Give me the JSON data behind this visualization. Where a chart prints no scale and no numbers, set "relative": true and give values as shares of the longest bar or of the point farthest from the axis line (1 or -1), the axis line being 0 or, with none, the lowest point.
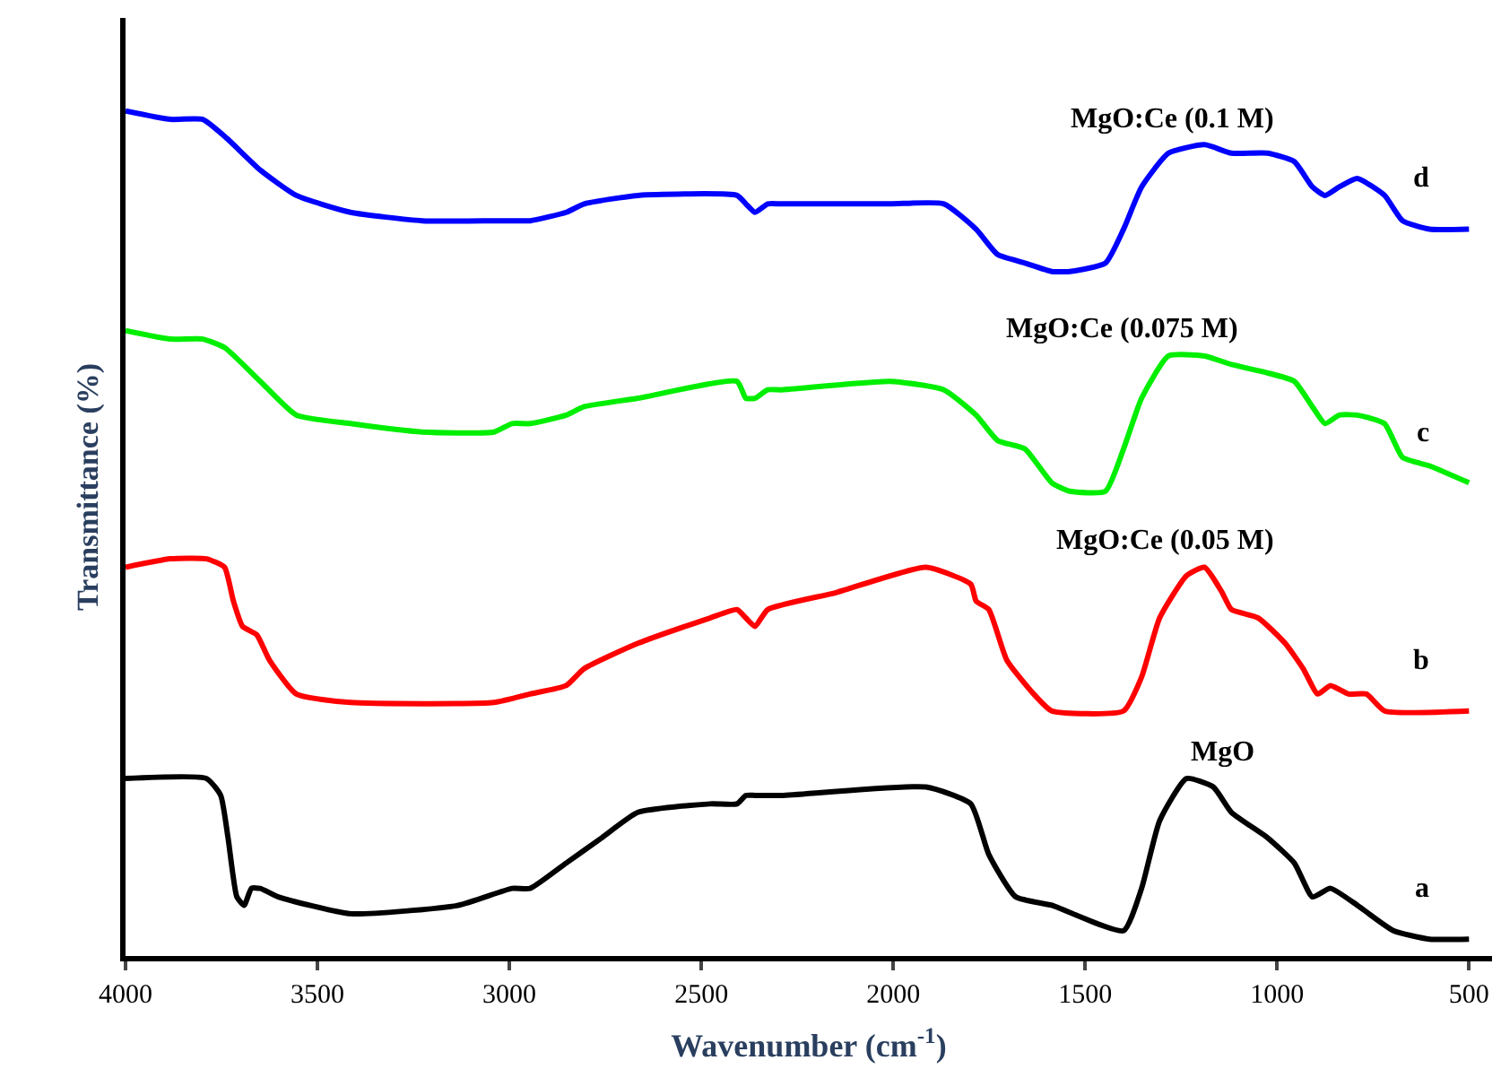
{
  "chart_data": {
    "type": "line",
    "relative": true,
    "xlabel": "Wavenumber (cm$^{-1}$)",
    "ylabel": "Transmittance (%)",
    "xlim": [
      4000,
      440
    ],
    "xticks": [
      4000,
      3500,
      3000,
      2500,
      2000,
      1500,
      1000,
      500
    ],
    "legend": false,
    "tick_labels": "x",
    "series": [
      {
        "name": "MgO",
        "color": "#000000",
        "x": [
          4000,
          3789,
          3752,
          3733,
          3710,
          3691,
          3672,
          3649,
          3602,
          3414,
          3133,
          2993,
          2946,
          2852,
          2759,
          2665,
          2477,
          2407,
          2384,
          2360,
          2290,
          1915,
          1798,
          1751,
          1681,
          1587,
          1400,
          1353,
          1306,
          1236,
          1166,
          1119,
          1025,
          955,
          908,
          861,
          791,
          697,
          603,
          500
        ],
        "values": [
          0.21,
          0.21,
          0.19,
          0.14,
          0.07,
          0.06,
          0.08,
          0.08,
          0.07,
          0.05,
          0.06,
          0.08,
          0.08,
          0.11,
          0.14,
          0.17,
          0.18,
          0.18,
          0.19,
          0.19,
          0.19,
          0.2,
          0.18,
          0.12,
          0.07,
          0.06,
          0.03,
          0.08,
          0.16,
          0.21,
          0.2,
          0.17,
          0.14,
          0.11,
          0.07,
          0.08,
          0.06,
          0.03,
          0.02,
          0.02
        ]
      },
      {
        "name": "MgO:Ce (0.05 M)",
        "color": "#ff0000",
        "x": [
          4000,
          3883,
          3789,
          3742,
          3719,
          3695,
          3658,
          3625,
          3555,
          3414,
          3040,
          2946,
          2852,
          2805,
          2665,
          2477,
          2407,
          2384,
          2360,
          2327,
          2149,
          1915,
          1798,
          1784,
          1751,
          1704,
          1634,
          1587,
          1400,
          1353,
          1306,
          1236,
          1189,
          1143,
          1119,
          1049,
          979,
          932,
          894,
          861,
          814,
          767,
          720,
          500
        ],
        "values": [
          0.46,
          0.47,
          0.47,
          0.46,
          0.42,
          0.39,
          0.38,
          0.35,
          0.31,
          0.3,
          0.3,
          0.31,
          0.32,
          0.34,
          0.37,
          0.4,
          0.41,
          0.4,
          0.39,
          0.41,
          0.43,
          0.46,
          0.44,
          0.42,
          0.41,
          0.35,
          0.31,
          0.29,
          0.29,
          0.33,
          0.4,
          0.45,
          0.46,
          0.43,
          0.41,
          0.4,
          0.37,
          0.34,
          0.31,
          0.32,
          0.31,
          0.31,
          0.29,
          0.29
        ]
      },
      {
        "name": "MgO:Ce (0.075 M)",
        "color": "#00ee00",
        "x": [
          4000,
          3883,
          3799,
          3742,
          3649,
          3555,
          3414,
          3227,
          3040,
          2993,
          2946,
          2852,
          2805,
          2665,
          2407,
          2384,
          2360,
          2327,
          2290,
          2009,
          1868,
          1784,
          1728,
          1657,
          1587,
          1540,
          1447,
          1400,
          1353,
          1283,
          1189,
          1119,
          1025,
          955,
          908,
          875,
          838,
          791,
          720,
          673,
          603,
          500
        ],
        "values": [
          0.74,
          0.73,
          0.73,
          0.72,
          0.68,
          0.64,
          0.63,
          0.62,
          0.62,
          0.63,
          0.63,
          0.64,
          0.65,
          0.66,
          0.68,
          0.66,
          0.66,
          0.67,
          0.67,
          0.68,
          0.67,
          0.64,
          0.61,
          0.6,
          0.56,
          0.55,
          0.55,
          0.6,
          0.66,
          0.71,
          0.71,
          0.7,
          0.69,
          0.68,
          0.65,
          0.63,
          0.64,
          0.64,
          0.63,
          0.59,
          0.58,
          0.56
        ]
      },
      {
        "name": "MgO:Ce (0.1 M)",
        "color": "#0000ff",
        "x": [
          4000,
          3883,
          3799,
          3742,
          3649,
          3555,
          3414,
          3227,
          3040,
          2993,
          2946,
          2852,
          2805,
          2665,
          2407,
          2384,
          2360,
          2327,
          2290,
          2009,
          1868,
          1784,
          1728,
          1657,
          1587,
          1540,
          1447,
          1400,
          1353,
          1283,
          1189,
          1119,
          1025,
          955,
          908,
          875,
          838,
          791,
          720,
          673,
          603,
          500
        ],
        "values": [
          1.0,
          0.99,
          0.99,
          0.97,
          0.93,
          0.9,
          0.88,
          0.87,
          0.87,
          0.87,
          0.87,
          0.88,
          0.89,
          0.9,
          0.9,
          0.89,
          0.88,
          0.89,
          0.89,
          0.89,
          0.89,
          0.86,
          0.83,
          0.82,
          0.81,
          0.81,
          0.82,
          0.86,
          0.91,
          0.95,
          0.96,
          0.95,
          0.95,
          0.94,
          0.91,
          0.9,
          0.91,
          0.92,
          0.9,
          0.87,
          0.86,
          0.86
        ]
      }
    ],
    "annotations": [
      "a",
      "b",
      "c",
      "d"
    ]
  }
}
